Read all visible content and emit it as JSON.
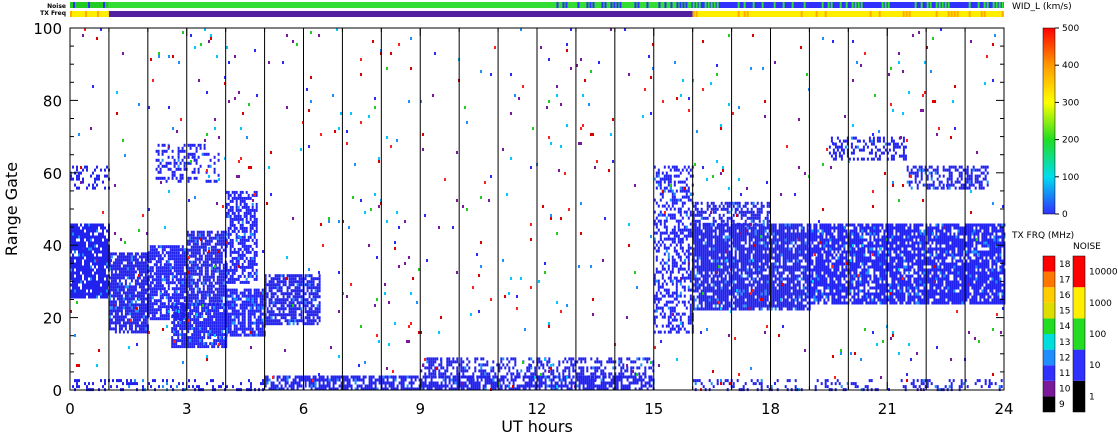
{
  "chart_data": {
    "type": "heatmap",
    "xlabel": "UT hours",
    "ylabel": "Range Gate",
    "xlim": [
      0,
      24
    ],
    "ylim": [
      0,
      100
    ],
    "xticks": [
      0,
      3,
      6,
      9,
      12,
      15,
      18,
      21,
      24
    ],
    "yticks": [
      0,
      20,
      40,
      60,
      80,
      100
    ],
    "scan_boundaries_ut": [
      1.0,
      2.0,
      3.0,
      4.0,
      5.0,
      6.0,
      7.0,
      8.0,
      9.0,
      10.0,
      11.0,
      12.0,
      13.0,
      14.0,
      15.0,
      16.0,
      17.0,
      18.0,
      19.0,
      20.0,
      21.0,
      22.0,
      23.0
    ],
    "strips": {
      "noise_label": "Noise",
      "txfreq_label": "TX Freq",
      "noise_segments": [
        {
          "from": 0,
          "to": 1.0,
          "color": "#22cc22",
          "mixed": "#3030ff"
        },
        {
          "from": 1.0,
          "to": 12.5,
          "color": "#33dd33",
          "mixed": "#33dd33"
        },
        {
          "from": 12.5,
          "to": 16.0,
          "color": "#33dd33",
          "mixed": "#3030ff"
        },
        {
          "from": 16.0,
          "to": 24.0,
          "color": "#3030ff",
          "mixed": "#33dd33"
        }
      ],
      "txfreq_segments": [
        {
          "from": 0,
          "to": 1.0,
          "color": "#ffee00"
        },
        {
          "from": 1.0,
          "to": 16.0,
          "color": "#5020a0"
        },
        {
          "from": 16.0,
          "to": 24.0,
          "color": "#ffee00"
        }
      ]
    },
    "echo_regions": [
      {
        "x0": 0.0,
        "x1": 1.0,
        "y0": 26,
        "y1": 46,
        "density": 0.85,
        "color": "#2222ee"
      },
      {
        "x0": 1.0,
        "x1": 2.0,
        "y0": 16,
        "y1": 38,
        "density": 0.8,
        "color": "#2222ee"
      },
      {
        "x0": 2.0,
        "x1": 3.0,
        "y0": 20,
        "y1": 40,
        "density": 0.8,
        "color": "#2222ee"
      },
      {
        "x0": 3.0,
        "x1": 4.0,
        "y0": 24,
        "y1": 44,
        "density": 0.8,
        "color": "#2222ee"
      },
      {
        "x0": 4.0,
        "x1": 4.8,
        "y0": 30,
        "y1": 55,
        "density": 0.6,
        "color": "#2222ee"
      },
      {
        "x0": 2.6,
        "x1": 4.0,
        "y0": 12,
        "y1": 24,
        "density": 0.85,
        "color": "#2222ee"
      },
      {
        "x0": 4.0,
        "x1": 5.0,
        "y0": 15,
        "y1": 28,
        "density": 0.8,
        "color": "#2222ee"
      },
      {
        "x0": 5.0,
        "x1": 6.4,
        "y0": 18,
        "y1": 32,
        "density": 0.7,
        "color": "#2222ee"
      },
      {
        "x0": 2.2,
        "x1": 3.8,
        "y0": 58,
        "y1": 68,
        "density": 0.35,
        "color": "#2222ee"
      },
      {
        "x0": 0.0,
        "x1": 1.0,
        "y0": 56,
        "y1": 62,
        "density": 0.3,
        "color": "#2222ee"
      },
      {
        "x0": 15.0,
        "x1": 16.0,
        "y0": 16,
        "y1": 62,
        "density": 0.45,
        "color": "#2222ee"
      },
      {
        "x0": 16.0,
        "x1": 19.0,
        "y0": 22,
        "y1": 46,
        "density": 0.85,
        "color": "#2222ee"
      },
      {
        "x0": 19.0,
        "x1": 24.0,
        "y0": 24,
        "y1": 46,
        "density": 0.8,
        "color": "#2222ee"
      },
      {
        "x0": 16.0,
        "x1": 18.0,
        "y0": 46,
        "y1": 52,
        "density": 0.5,
        "color": "#2222ee"
      },
      {
        "x0": 19.5,
        "x1": 21.5,
        "y0": 64,
        "y1": 70,
        "density": 0.45,
        "color": "#2222ee"
      },
      {
        "x0": 21.5,
        "x1": 23.6,
        "y0": 56,
        "y1": 62,
        "density": 0.55,
        "color": "#2222ee"
      },
      {
        "x0": 5.0,
        "x1": 15.0,
        "y0": 0,
        "y1": 4,
        "density": 0.7,
        "color": "#2222ee"
      },
      {
        "x0": 9.0,
        "x1": 15.0,
        "y0": 4,
        "y1": 9,
        "density": 0.4,
        "color": "#2222ee"
      },
      {
        "x0": 0.0,
        "x1": 5.0,
        "y0": 0,
        "y1": 3,
        "density": 0.25,
        "color": "#2222ee"
      },
      {
        "x0": 16.0,
        "x1": 24.0,
        "y0": 0,
        "y1": 3,
        "density": 0.25,
        "color": "#2222ee"
      },
      {
        "x0": 0.0,
        "x1": 24.0,
        "y0": 0,
        "y1": 100,
        "density": 0.012,
        "color": "mixed"
      }
    ],
    "colorbars": [
      {
        "title": "WID_L (km/s)",
        "type": "continuous",
        "ticks": [
          "0",
          "100",
          "200",
          "300",
          "400",
          "500"
        ],
        "stops": [
          "#3030ff",
          "#00ddee",
          "#22dd22",
          "#ffff00",
          "#ff9900",
          "#ff0000"
        ]
      },
      {
        "title": "TX FRQ (MHz)",
        "type": "discrete",
        "ticks": [
          "9",
          "10",
          "11",
          "12",
          "13",
          "14",
          "15",
          "16",
          "17",
          "18"
        ],
        "colors": [
          "#000000",
          "#7a1a9a",
          "#3030ff",
          "#1f8fff",
          "#00dddd",
          "#22dd22",
          "#dddd00",
          "#ffcc00",
          "#ff7700",
          "#ff0000"
        ]
      },
      {
        "title": "NOISE",
        "type": "discrete",
        "ticks": [
          "1",
          "10",
          "100",
          "1000",
          "10000"
        ],
        "colors": [
          "#000000",
          "#3030ff",
          "#22dd22",
          "#ffee00",
          "#ff0000"
        ]
      }
    ]
  }
}
